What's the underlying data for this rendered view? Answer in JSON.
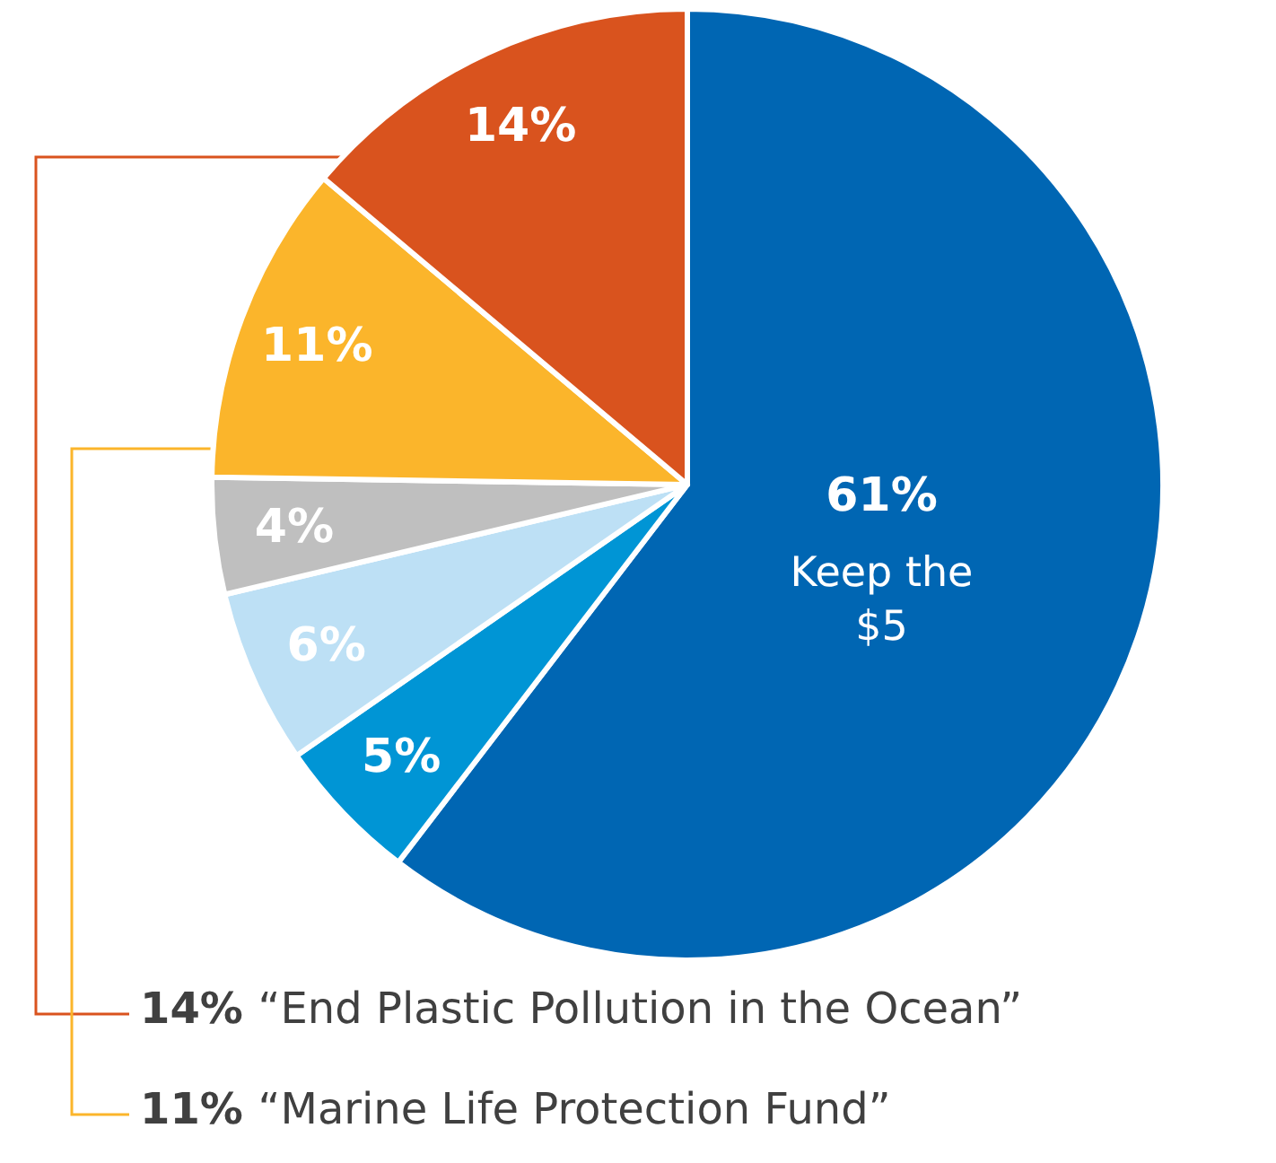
{
  "chart_data": {
    "type": "pie",
    "categories": [
      "Keep the $5",
      null,
      null,
      null,
      "“Marine Life Protection Fund”",
      "“End Plastic Pollution in the Ocean”"
    ],
    "values": [
      61,
      5,
      6,
      4,
      11,
      14
    ],
    "colors": [
      "#0066b3",
      "#0095d5",
      "#bde0f5",
      "#bfbfbf",
      "#fbb52b",
      "#d9531e"
    ],
    "value_labels": [
      "61%",
      "5%",
      "6%",
      "4%",
      "11%",
      "14%"
    ],
    "legend": false
  }
}
